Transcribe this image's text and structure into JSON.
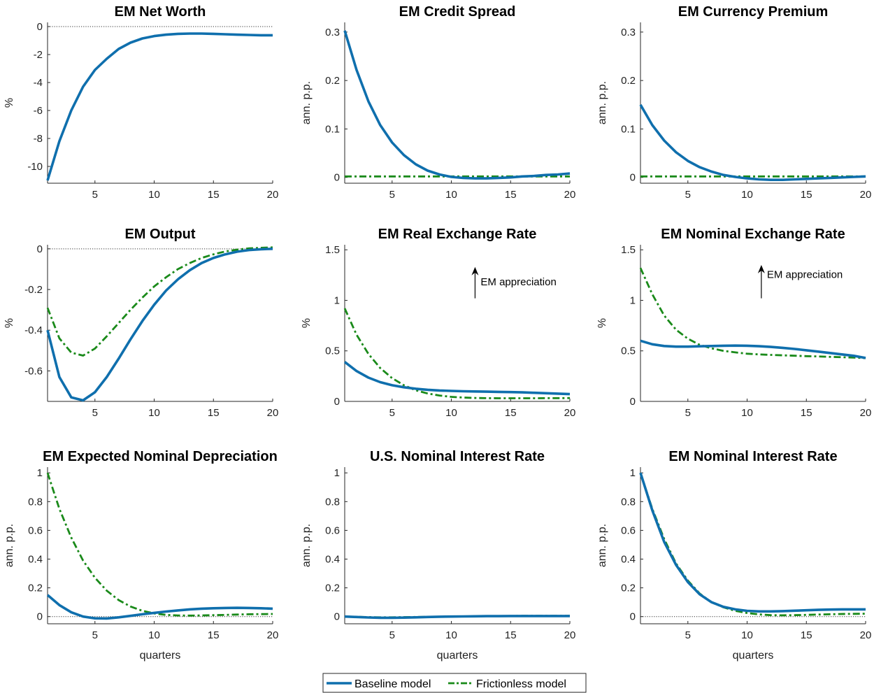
{
  "colors": {
    "baseline": "#0f6fad",
    "frictionless": "#1a8a1a",
    "axis": "#262626",
    "zero_line": "#333333"
  },
  "legend": {
    "items": [
      {
        "label": "Baseline model",
        "color": "#0f6fad",
        "style": "solid"
      },
      {
        "label": "Frictionless model",
        "color": "#1a8a1a",
        "style": "dashdot"
      }
    ]
  },
  "chart_data": [
    {
      "type": "line",
      "title": "EM Net Worth",
      "ylabel": "%",
      "xlabel": "",
      "xlim": [
        1,
        20
      ],
      "ylim": [
        -11.2,
        0.3
      ],
      "xticks": [
        5,
        10,
        15,
        20
      ],
      "yticks": [
        -10,
        -8,
        -6,
        -4,
        -2,
        0
      ],
      "zero_line": true,
      "x": [
        1,
        2,
        3,
        4,
        5,
        6,
        7,
        8,
        9,
        10,
        11,
        12,
        13,
        14,
        15,
        16,
        17,
        18,
        19,
        20
      ],
      "series": [
        {
          "name": "Baseline model",
          "values": [
            -11.0,
            -8.2,
            -6.0,
            -4.3,
            -3.1,
            -2.3,
            -1.6,
            -1.15,
            -0.85,
            -0.68,
            -0.58,
            -0.52,
            -0.5,
            -0.5,
            -0.52,
            -0.55,
            -0.58,
            -0.6,
            -0.62,
            -0.62
          ]
        }
      ]
    },
    {
      "type": "line",
      "title": "EM Credit Spread",
      "ylabel": "ann. p.p.",
      "xlabel": "",
      "xlim": [
        1,
        20
      ],
      "ylim": [
        -0.012,
        0.32
      ],
      "xticks": [
        5,
        10,
        15,
        20
      ],
      "yticks": [
        0,
        0.1,
        0.2,
        0.3
      ],
      "zero_line": false,
      "x": [
        1,
        2,
        3,
        4,
        5,
        6,
        7,
        8,
        9,
        10,
        11,
        12,
        13,
        14,
        15,
        16,
        17,
        18,
        19,
        20
      ],
      "series": [
        {
          "name": "Baseline model",
          "values": [
            0.303,
            0.222,
            0.157,
            0.108,
            0.072,
            0.046,
            0.027,
            0.014,
            0.006,
            0.001,
            -0.001,
            -0.002,
            -0.002,
            -0.001,
            0.0,
            0.002,
            0.003,
            0.005,
            0.006,
            0.008
          ]
        },
        {
          "name": "Frictionless model",
          "values": [
            0.002,
            0.002,
            0.002,
            0.002,
            0.002,
            0.002,
            0.002,
            0.002,
            0.002,
            0.002,
            0.002,
            0.002,
            0.002,
            0.002,
            0.002,
            0.002,
            0.002,
            0.002,
            0.002,
            0.002
          ]
        }
      ]
    },
    {
      "type": "line",
      "title": "EM Currency Premium",
      "ylabel": "ann. p.p.",
      "xlabel": "",
      "xlim": [
        1,
        20
      ],
      "ylim": [
        -0.012,
        0.32
      ],
      "xticks": [
        5,
        10,
        15,
        20
      ],
      "yticks": [
        0,
        0.1,
        0.2,
        0.3
      ],
      "zero_line": false,
      "x": [
        1,
        2,
        3,
        4,
        5,
        6,
        7,
        8,
        9,
        10,
        11,
        12,
        13,
        14,
        15,
        16,
        17,
        18,
        19,
        20
      ],
      "series": [
        {
          "name": "Baseline model",
          "values": [
            0.15,
            0.108,
            0.076,
            0.052,
            0.034,
            0.021,
            0.012,
            0.005,
            0.001,
            -0.002,
            -0.004,
            -0.005,
            -0.005,
            -0.004,
            -0.003,
            -0.002,
            -0.001,
            0.0,
            0.001,
            0.002
          ]
        },
        {
          "name": "Frictionless model",
          "values": [
            0.002,
            0.002,
            0.002,
            0.002,
            0.002,
            0.002,
            0.002,
            0.002,
            0.002,
            0.002,
            0.002,
            0.002,
            0.002,
            0.002,
            0.002,
            0.002,
            0.002,
            0.002,
            0.002,
            0.002
          ]
        }
      ]
    },
    {
      "type": "line",
      "title": "EM Output",
      "ylabel": "%",
      "xlabel": "",
      "xlim": [
        1,
        20
      ],
      "ylim": [
        -0.75,
        0.02
      ],
      "xticks": [
        5,
        10,
        15,
        20
      ],
      "yticks": [
        -0.6,
        -0.4,
        -0.2,
        0
      ],
      "zero_line": true,
      "x": [
        1,
        2,
        3,
        4,
        5,
        6,
        7,
        8,
        9,
        10,
        11,
        12,
        13,
        14,
        15,
        16,
        17,
        18,
        19,
        20
      ],
      "series": [
        {
          "name": "Baseline model",
          "values": [
            -0.4,
            -0.63,
            -0.73,
            -0.745,
            -0.705,
            -0.63,
            -0.54,
            -0.445,
            -0.355,
            -0.275,
            -0.205,
            -0.15,
            -0.105,
            -0.07,
            -0.045,
            -0.027,
            -0.014,
            -0.006,
            -0.002,
            0.0
          ]
        },
        {
          "name": "Frictionless model",
          "values": [
            -0.29,
            -0.44,
            -0.51,
            -0.525,
            -0.49,
            -0.43,
            -0.365,
            -0.3,
            -0.24,
            -0.185,
            -0.14,
            -0.1,
            -0.07,
            -0.045,
            -0.027,
            -0.013,
            -0.004,
            0.002,
            0.005,
            0.007
          ]
        }
      ]
    },
    {
      "type": "line",
      "title": "EM Real Exchange Rate",
      "ylabel": "%",
      "xlabel": "",
      "xlim": [
        1,
        20
      ],
      "ylim": [
        0,
        1.55
      ],
      "xticks": [
        5,
        10,
        15,
        20
      ],
      "yticks": [
        0,
        0.5,
        1,
        1.5
      ],
      "zero_line": false,
      "x": [
        1,
        2,
        3,
        4,
        5,
        6,
        7,
        8,
        9,
        10,
        11,
        12,
        13,
        14,
        15,
        16,
        17,
        18,
        19,
        20
      ],
      "series": [
        {
          "name": "Baseline model",
          "values": [
            0.39,
            0.3,
            0.235,
            0.19,
            0.16,
            0.14,
            0.125,
            0.115,
            0.108,
            0.104,
            0.1,
            0.098,
            0.096,
            0.094,
            0.092,
            0.089,
            0.085,
            0.081,
            0.077,
            0.072
          ]
        },
        {
          "name": "Frictionless model",
          "values": [
            0.92,
            0.66,
            0.47,
            0.33,
            0.23,
            0.16,
            0.11,
            0.078,
            0.058,
            0.045,
            0.038,
            0.034,
            0.032,
            0.031,
            0.031,
            0.031,
            0.031,
            0.032,
            0.032,
            0.033
          ]
        }
      ],
      "annotation": {
        "text": "EM appreciation",
        "arrow_x": 12,
        "arrow_from": 1.02,
        "arrow_to": 1.33,
        "text_y": 1.15
      }
    },
    {
      "type": "line",
      "title": "EM Nominal Exchange Rate",
      "ylabel": "%",
      "xlabel": "",
      "xlim": [
        1,
        20
      ],
      "ylim": [
        0,
        1.55
      ],
      "xticks": [
        5,
        10,
        15,
        20
      ],
      "yticks": [
        0,
        0.5,
        1,
        1.5
      ],
      "zero_line": false,
      "x": [
        1,
        2,
        3,
        4,
        5,
        6,
        7,
        8,
        9,
        10,
        11,
        12,
        13,
        14,
        15,
        16,
        17,
        18,
        19,
        20
      ],
      "series": [
        {
          "name": "Baseline model",
          "values": [
            0.6,
            0.565,
            0.548,
            0.542,
            0.542,
            0.545,
            0.548,
            0.551,
            0.552,
            0.551,
            0.546,
            0.539,
            0.53,
            0.519,
            0.506,
            0.493,
            0.479,
            0.465,
            0.451,
            0.43
          ]
        },
        {
          "name": "Frictionless model",
          "values": [
            1.32,
            1.06,
            0.85,
            0.71,
            0.62,
            0.56,
            0.525,
            0.5,
            0.485,
            0.472,
            0.465,
            0.46,
            0.456,
            0.452,
            0.448,
            0.445,
            0.441,
            0.437,
            0.433,
            0.428
          ]
        }
      ],
      "annotation": {
        "text": "EM appreciation",
        "arrow_x": 11.2,
        "arrow_from": 1.02,
        "arrow_to": 1.35,
        "text_y": 1.22
      }
    },
    {
      "type": "line",
      "title": "EM Expected Nominal Depreciation",
      "ylabel": "ann. p.p.",
      "xlabel": "quarters",
      "xlim": [
        1,
        20
      ],
      "ylim": [
        -0.05,
        1.04
      ],
      "xticks": [
        5,
        10,
        15,
        20
      ],
      "yticks": [
        0,
        0.2,
        0.4,
        0.6,
        0.8,
        1
      ],
      "zero_line": true,
      "x": [
        1,
        2,
        3,
        4,
        5,
        6,
        7,
        8,
        9,
        10,
        11,
        12,
        13,
        14,
        15,
        16,
        17,
        18,
        19,
        20
      ],
      "series": [
        {
          "name": "Baseline model",
          "values": [
            0.15,
            0.08,
            0.03,
            0.0,
            -0.012,
            -0.013,
            -0.005,
            0.005,
            0.016,
            0.026,
            0.035,
            0.043,
            0.05,
            0.055,
            0.058,
            0.06,
            0.061,
            0.06,
            0.058,
            0.055
          ]
        },
        {
          "name": "Frictionless model",
          "values": [
            1.0,
            0.75,
            0.55,
            0.39,
            0.27,
            0.18,
            0.115,
            0.07,
            0.04,
            0.022,
            0.012,
            0.008,
            0.007,
            0.008,
            0.01,
            0.012,
            0.014,
            0.016,
            0.017,
            0.018
          ]
        }
      ]
    },
    {
      "type": "line",
      "title": "U.S. Nominal Interest Rate",
      "ylabel": "ann. p.p.",
      "xlabel": "quarters",
      "xlim": [
        1,
        20
      ],
      "ylim": [
        -0.05,
        1.04
      ],
      "xticks": [
        5,
        10,
        15,
        20
      ],
      "yticks": [
        0,
        0.2,
        0.4,
        0.6,
        0.8,
        1
      ],
      "zero_line": false,
      "x": [
        1,
        2,
        3,
        4,
        5,
        6,
        7,
        8,
        9,
        10,
        11,
        12,
        13,
        14,
        15,
        16,
        17,
        18,
        19,
        20
      ],
      "series": [
        {
          "name": "Baseline model",
          "values": [
            0.0,
            -0.003,
            -0.006,
            -0.008,
            -0.008,
            -0.007,
            -0.005,
            -0.003,
            -0.001,
            0.0,
            0.001,
            0.002,
            0.003,
            0.003,
            0.004,
            0.004,
            0.004,
            0.004,
            0.004,
            0.004
          ]
        },
        {
          "name": "Frictionless model",
          "values": [
            0.0,
            -0.002,
            -0.004,
            -0.005,
            -0.005,
            -0.004,
            -0.003,
            -0.002,
            -0.001,
            0.0,
            0.001,
            0.002,
            0.003,
            0.004,
            0.004,
            0.005,
            0.005,
            0.005,
            0.005,
            0.005
          ]
        }
      ]
    },
    {
      "type": "line",
      "title": "EM Nominal Interest Rate",
      "ylabel": "ann. p.p.",
      "xlabel": "quarters",
      "xlim": [
        1,
        20
      ],
      "ylim": [
        -0.05,
        1.04
      ],
      "xticks": [
        5,
        10,
        15,
        20
      ],
      "yticks": [
        0,
        0.2,
        0.4,
        0.6,
        0.8,
        1
      ],
      "zero_line": true,
      "x": [
        1,
        2,
        3,
        4,
        5,
        6,
        7,
        8,
        9,
        10,
        11,
        12,
        13,
        14,
        15,
        16,
        17,
        18,
        19,
        20
      ],
      "series": [
        {
          "name": "Baseline model",
          "values": [
            1.0,
            0.74,
            0.52,
            0.36,
            0.24,
            0.155,
            0.1,
            0.068,
            0.05,
            0.04,
            0.036,
            0.036,
            0.038,
            0.041,
            0.044,
            0.047,
            0.049,
            0.05,
            0.05,
            0.05
          ]
        },
        {
          "name": "Frictionless model",
          "values": [
            1.0,
            0.75,
            0.54,
            0.37,
            0.25,
            0.16,
            0.1,
            0.065,
            0.04,
            0.025,
            0.015,
            0.01,
            0.009,
            0.01,
            0.012,
            0.014,
            0.016,
            0.018,
            0.019,
            0.02
          ]
        }
      ]
    }
  ]
}
